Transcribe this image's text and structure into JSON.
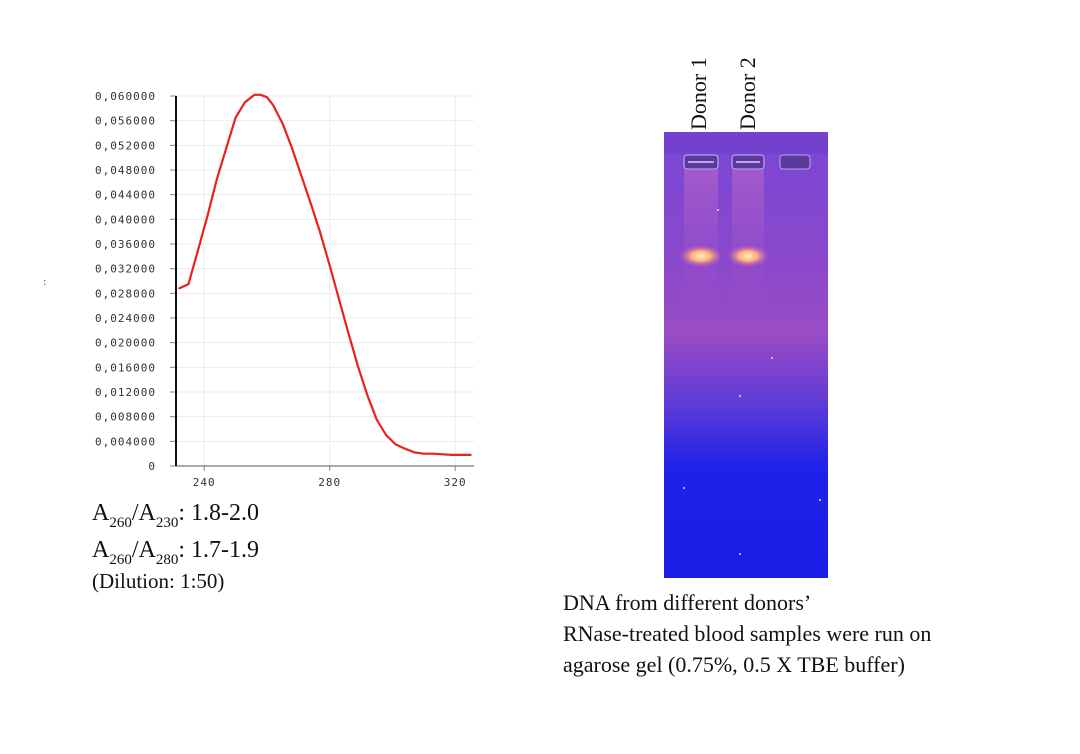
{
  "chart_data": {
    "type": "line",
    "title": "",
    "xlabel": "",
    "ylabel": "",
    "xlim": [
      231,
      326
    ],
    "ylim": [
      0,
      0.06
    ],
    "x_ticks": [
      "240",
      "280",
      "320"
    ],
    "y_ticks": [
      "0,060000",
      "0,056000",
      "0,052000",
      "0,048000",
      "0,044000",
      "0,040000",
      "0,036000",
      "0,032000",
      "0,028000",
      "0,024000",
      "0,020000",
      "0,016000",
      "0,012000",
      "0,008000",
      "0,004000",
      "0"
    ],
    "grid": true,
    "series": [
      {
        "color": "#e8231f",
        "x": [
          232,
          235,
          238,
          241,
          244,
          247,
          250,
          253,
          256,
          258,
          260,
          262,
          265,
          268,
          271,
          274,
          277,
          280,
          283,
          286,
          289,
          292,
          295,
          298,
          301,
          304,
          307,
          310,
          313,
          316,
          319,
          322,
          325
        ],
        "y": [
          0.0288,
          0.0295,
          0.035,
          0.0405,
          0.0465,
          0.0515,
          0.0565,
          0.059,
          0.0602,
          0.0602,
          0.0598,
          0.0585,
          0.0555,
          0.0515,
          0.047,
          0.0425,
          0.0378,
          0.0325,
          0.027,
          0.0215,
          0.0162,
          0.0115,
          0.0075,
          0.005,
          0.0035,
          0.0028,
          0.0022,
          0.002,
          0.002,
          0.0019,
          0.0018,
          0.0018,
          0.0018
        ]
      }
    ]
  },
  "ratios": {
    "r1": {
      "a": "A",
      "s1": "260",
      "b": "/A",
      "s2": "230",
      "c": ": 1.8-2.0"
    },
    "r2": {
      "a": "A",
      "s1": "260",
      "b": "/A",
      "s2": "280",
      "c": ": 1.7-1.9"
    },
    "dilution": "(Dilution: 1:50)"
  },
  "marker": ":",
  "gel": {
    "lanes": [
      "Donor 1",
      "Donor 2"
    ],
    "colors": {
      "top": "#7a46d6",
      "middle": "#9a4cc4",
      "bottom": "#1f22e8"
    }
  },
  "caption": [
    "DNA from different donors’",
    "RNase-treated blood samples were run on",
    "agarose gel (0.75%, 0.5 X TBE buffer)"
  ]
}
